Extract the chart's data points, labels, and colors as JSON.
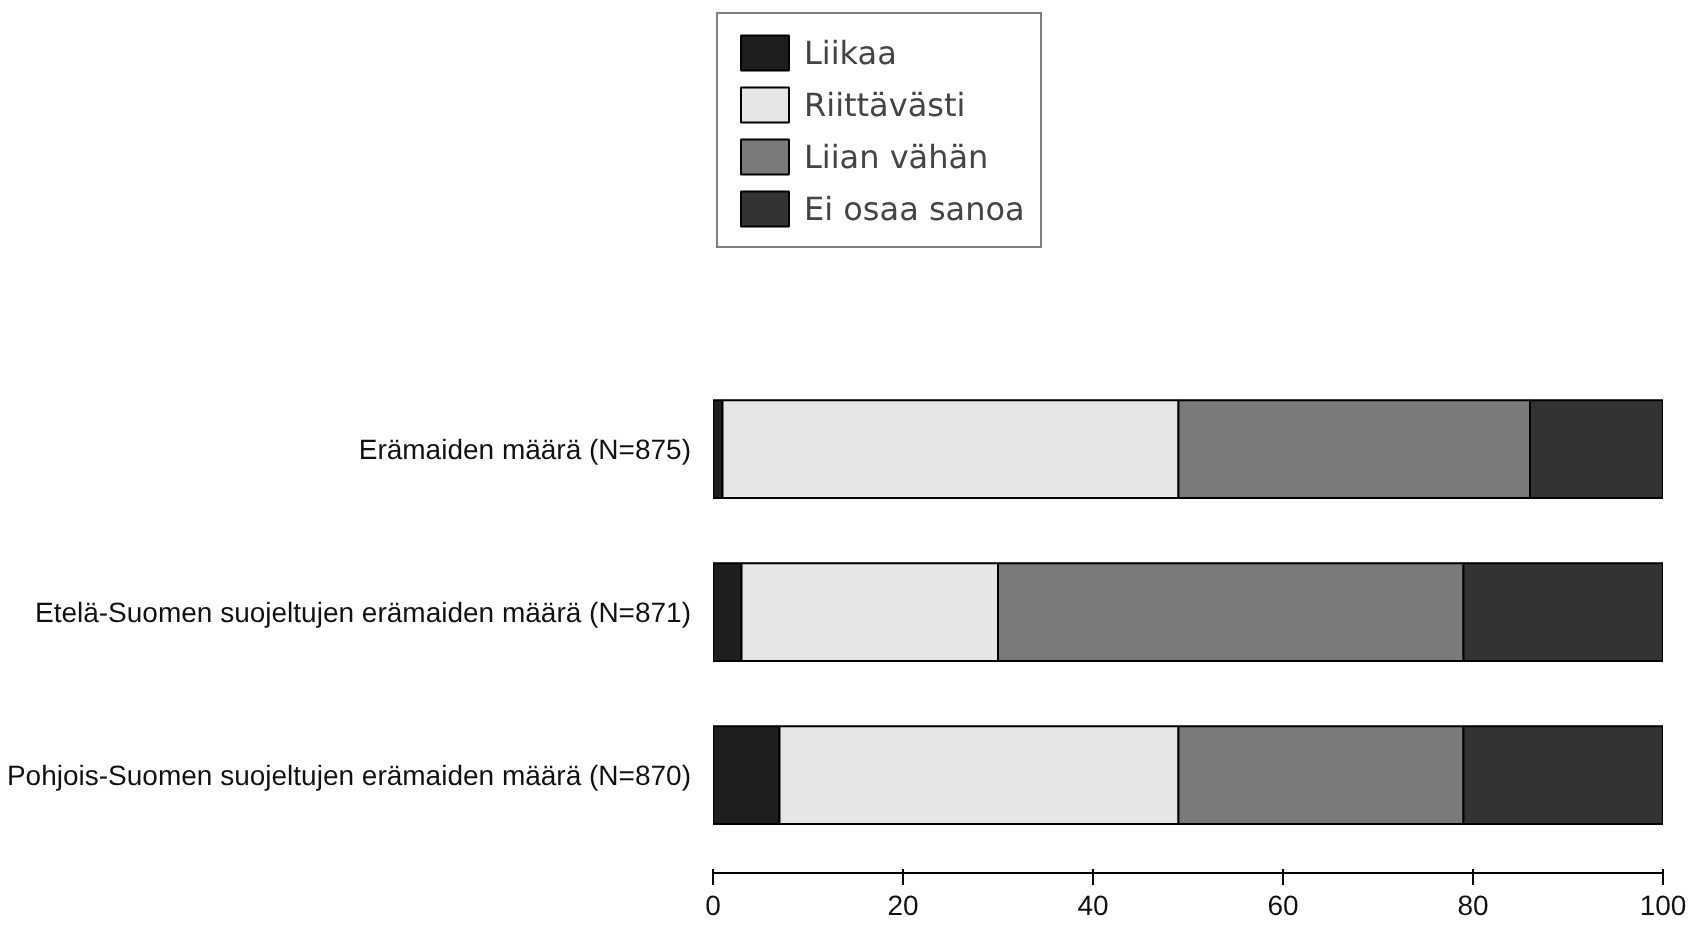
{
  "chart_data": {
    "type": "bar",
    "orientation": "horizontal",
    "stacked": true,
    "categories": [
      "Erämaiden määrä (N=875)",
      "Etelä-Suomen suojeltujen erämaiden määrä (N=871)",
      "Pohjois-Suomen suojeltujen erämaiden määrä (N=870)"
    ],
    "series": [
      {
        "name": "Liikaa",
        "color": "#1e1e1e",
        "values": [
          1,
          3,
          7
        ]
      },
      {
        "name": "Riittävästi",
        "color": "#e6e6e6",
        "values": [
          48,
          27,
          42
        ]
      },
      {
        "name": "Liian vähän",
        "color": "#7a7a7a",
        "values": [
          37,
          49,
          30
        ]
      },
      {
        "name": "Ei osaa sanoa",
        "color": "#333333",
        "values": [
          14,
          21,
          21
        ]
      }
    ],
    "xlim": [
      0,
      100
    ],
    "xticks": [
      0,
      20,
      40,
      60,
      80,
      100
    ],
    "grid": false,
    "legend": "top"
  }
}
